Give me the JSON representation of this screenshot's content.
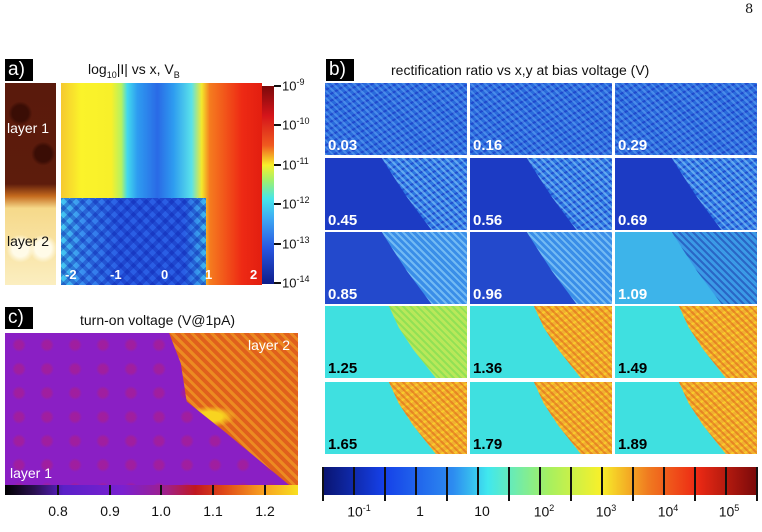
{
  "page_number": "8",
  "panel_a": {
    "label": "a)",
    "title_pre": "log",
    "title_sub": "10",
    "title_mid": "|I| vs x, V",
    "title_sub2": "B",
    "strip_labels": [
      "layer 1",
      "layer 2"
    ],
    "x_ticks": [
      "-2",
      "-1",
      "0",
      "1",
      "2"
    ],
    "colorbar": {
      "base": "10",
      "exponents": [
        "-9",
        "-10",
        "-11",
        "-12",
        "-13",
        "-14"
      ]
    }
  },
  "panel_b": {
    "label": "b)",
    "title": "rectification ratio vs x,y at bias voltage (V)",
    "tiles": [
      "0.03",
      "0.16",
      "0.29",
      "0.45",
      "0.56",
      "0.69",
      "0.85",
      "0.96",
      "1.09",
      "1.25",
      "1.36",
      "1.49",
      "1.65",
      "1.79",
      "1.89"
    ],
    "colorbar": {
      "labels": [
        {
          "base": "10",
          "exp": "-1"
        },
        {
          "base": "1",
          "exp": ""
        },
        {
          "base": "10",
          "exp": ""
        },
        {
          "base": "10",
          "exp": "2"
        },
        {
          "base": "10",
          "exp": "3"
        },
        {
          "base": "10",
          "exp": "4"
        },
        {
          "base": "10",
          "exp": "5"
        }
      ]
    }
  },
  "panel_c": {
    "label": "c)",
    "title": "turn-on voltage (V@1pA)",
    "layer_labels": [
      "layer 2",
      "layer 1"
    ],
    "colorbar": {
      "labels": [
        "0.8",
        "0.9",
        "1.0",
        "1.1",
        "1.2"
      ]
    }
  }
}
